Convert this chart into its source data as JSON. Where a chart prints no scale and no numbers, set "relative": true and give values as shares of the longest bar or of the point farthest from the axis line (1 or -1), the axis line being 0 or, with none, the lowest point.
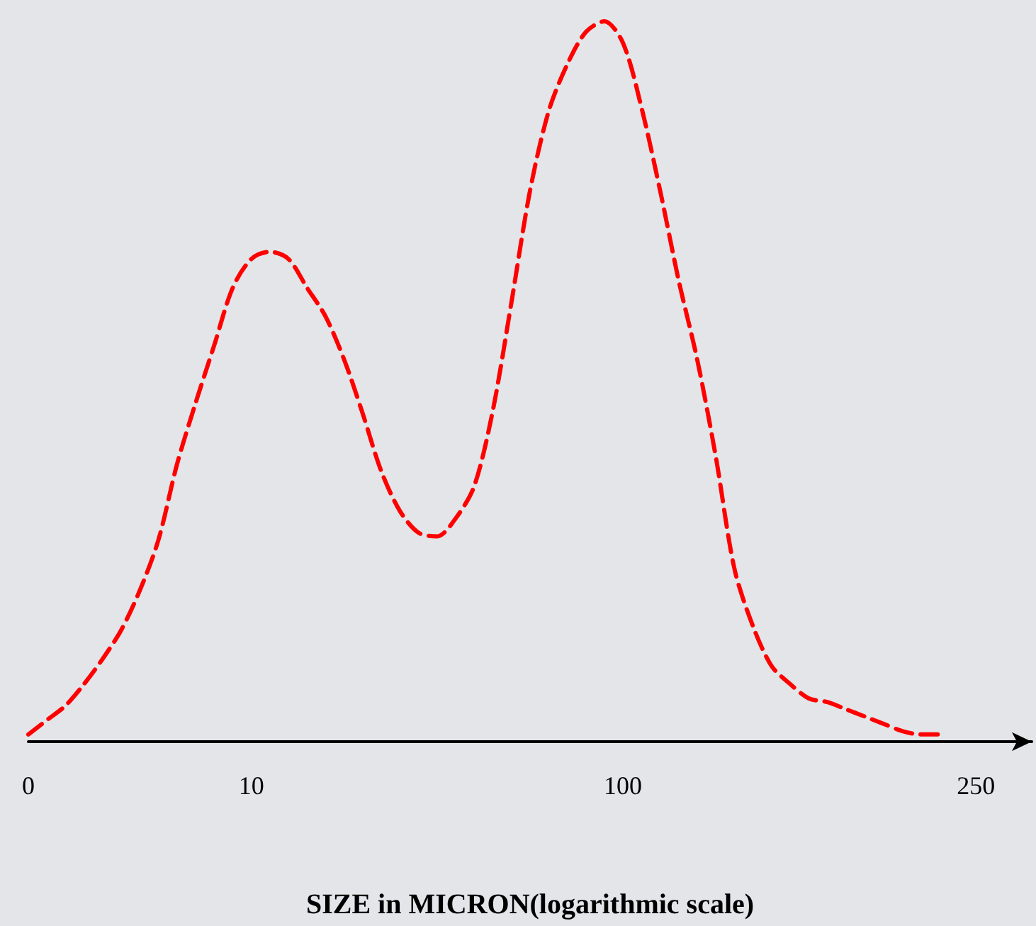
{
  "chart_data": {
    "type": "line",
    "xlabel": "SIZE in MICRON(logarithmic scale)",
    "relative": true,
    "line_style": "dashed",
    "marker": "none",
    "grid": false,
    "categories": [
      "0",
      null,
      null,
      null,
      null,
      null,
      null,
      null,
      null,
      null,
      null,
      null,
      "10",
      null,
      null,
      null,
      null,
      null,
      null,
      null,
      null,
      null,
      null,
      null,
      null,
      null,
      null,
      null,
      null,
      null,
      null,
      null,
      "100",
      null,
      null,
      null,
      null,
      null,
      null,
      null,
      null,
      null,
      null,
      null,
      null,
      null,
      null,
      null,
      null,
      null,
      null,
      "250",
      null,
      null,
      null
    ],
    "series": [
      {
        "color": "#ff0000",
        "values": [
          0.01,
          0.03,
          0.05,
          0.08,
          0.115,
          0.155,
          0.21,
          0.28,
          0.385,
          0.47,
          0.55,
          0.63,
          0.67,
          0.68,
          0.67,
          0.63,
          0.59,
          0.53,
          0.455,
          0.375,
          0.32,
          0.29,
          0.285,
          0.31,
          0.355,
          0.46,
          0.61,
          0.765,
          0.875,
          0.94,
          0.985,
          1,
          0.97,
          0.88,
          0.765,
          0.64,
          0.53,
          0.395,
          0.24,
          0.16,
          0.105,
          0.08,
          0.06,
          0.055,
          0.045,
          0.035,
          0.025,
          0.015,
          0.01,
          0.01,
          null,
          null,
          null,
          null,
          null
        ]
      }
    ]
  }
}
